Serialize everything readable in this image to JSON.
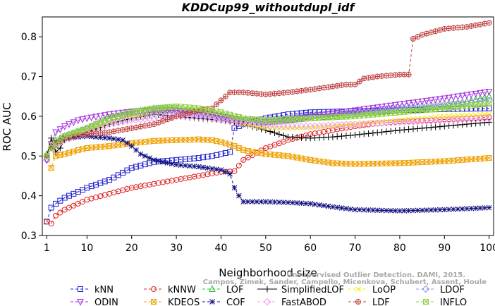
{
  "chart_data": {
    "type": "line",
    "title": "KDDCup99_withoutdupl_idf",
    "xlabel": "Neighborhood size",
    "ylabel": "ROC AUC",
    "xlim": [
      0,
      101
    ],
    "ylim": [
      0.3,
      0.85
    ],
    "x_ticks": [
      1,
      10,
      20,
      30,
      40,
      50,
      60,
      70,
      80,
      90,
      100
    ],
    "y_ticks": [
      0.3,
      0.4,
      0.5,
      0.6,
      0.7,
      0.8
    ],
    "x_tick_labels": [
      "1",
      "10",
      "20",
      "30",
      "40",
      "50",
      "60",
      "70",
      "80",
      "90",
      "100"
    ],
    "y_tick_labels": [
      "0.3",
      "0.4",
      "0.5",
      "0.6",
      "0.7",
      "0.8"
    ],
    "grid": false,
    "legend_position": "bottom",
    "watermark": "Campos, Zimek, Sander, Campello, Micenkova, Schubert, Assent, Houle",
    "watermark_line1": "Unsupervised Outlier Detection. DAMI, 2015.",
    "series": [
      {
        "name": "kNN",
        "color": "#2020d0",
        "marker": "square",
        "dash": "4,3",
        "points": [
          [
            1,
            0.335
          ],
          [
            2,
            0.37
          ],
          [
            3,
            0.38
          ],
          [
            5,
            0.395
          ],
          [
            8,
            0.41
          ],
          [
            10,
            0.42
          ],
          [
            15,
            0.44
          ],
          [
            20,
            0.47
          ],
          [
            25,
            0.485
          ],
          [
            30,
            0.49
          ],
          [
            35,
            0.495
          ],
          [
            38,
            0.5
          ],
          [
            42,
            0.51
          ],
          [
            43,
            0.57
          ],
          [
            45,
            0.58
          ],
          [
            50,
            0.595
          ],
          [
            55,
            0.605
          ],
          [
            60,
            0.61
          ],
          [
            70,
            0.613
          ],
          [
            80,
            0.615
          ],
          [
            90,
            0.618
          ],
          [
            100,
            0.62
          ]
        ]
      },
      {
        "name": "kNNW",
        "color": "#e02020",
        "marker": "circle",
        "dash": "4,3",
        "points": [
          [
            1,
            0.335
          ],
          [
            2,
            0.33
          ],
          [
            3,
            0.35
          ],
          [
            5,
            0.365
          ],
          [
            8,
            0.38
          ],
          [
            10,
            0.39
          ],
          [
            15,
            0.405
          ],
          [
            20,
            0.42
          ],
          [
            25,
            0.43
          ],
          [
            30,
            0.44
          ],
          [
            35,
            0.45
          ],
          [
            40,
            0.46
          ],
          [
            43,
            0.462
          ],
          [
            45,
            0.49
          ],
          [
            50,
            0.52
          ],
          [
            55,
            0.54
          ],
          [
            60,
            0.555
          ],
          [
            65,
            0.565
          ],
          [
            70,
            0.575
          ],
          [
            75,
            0.582
          ],
          [
            80,
            0.587
          ],
          [
            90,
            0.592
          ],
          [
            100,
            0.598
          ]
        ]
      },
      {
        "name": "LOF",
        "color": "#30c030",
        "marker": "triangle-up",
        "dash": "4,3",
        "points": [
          [
            1,
            0.505
          ],
          [
            2,
            0.525
          ],
          [
            3,
            0.54
          ],
          [
            5,
            0.55
          ],
          [
            8,
            0.56
          ],
          [
            10,
            0.57
          ],
          [
            15,
            0.595
          ],
          [
            20,
            0.61
          ],
          [
            25,
            0.62
          ],
          [
            30,
            0.62
          ],
          [
            35,
            0.61
          ],
          [
            40,
            0.6
          ],
          [
            45,
            0.585
          ],
          [
            50,
            0.585
          ],
          [
            55,
            0.59
          ],
          [
            60,
            0.595
          ],
          [
            70,
            0.605
          ],
          [
            80,
            0.615
          ],
          [
            90,
            0.625
          ],
          [
            100,
            0.65
          ]
        ]
      },
      {
        "name": "SimplifiedLOF",
        "color": "#000000",
        "marker": "plus",
        "dash": "",
        "points": [
          [
            1,
            0.5
          ],
          [
            2,
            0.545
          ],
          [
            3,
            0.51
          ],
          [
            4,
            0.52
          ],
          [
            5,
            0.54
          ],
          [
            8,
            0.55
          ],
          [
            10,
            0.56
          ],
          [
            15,
            0.58
          ],
          [
            20,
            0.595
          ],
          [
            25,
            0.605
          ],
          [
            30,
            0.6
          ],
          [
            35,
            0.595
          ],
          [
            40,
            0.59
          ],
          [
            45,
            0.58
          ],
          [
            50,
            0.565
          ],
          [
            55,
            0.548
          ],
          [
            60,
            0.545
          ],
          [
            65,
            0.548
          ],
          [
            70,
            0.553
          ],
          [
            80,
            0.565
          ],
          [
            90,
            0.575
          ],
          [
            100,
            0.585
          ]
        ]
      },
      {
        "name": "LoOP",
        "color": "#f0f000",
        "marker": "x",
        "dash": "4,3",
        "points": [
          [
            1,
            0.5
          ],
          [
            2,
            0.53
          ],
          [
            5,
            0.55
          ],
          [
            10,
            0.565
          ],
          [
            15,
            0.585
          ],
          [
            20,
            0.6
          ],
          [
            25,
            0.61
          ],
          [
            30,
            0.615
          ],
          [
            35,
            0.61
          ],
          [
            40,
            0.6
          ],
          [
            45,
            0.58
          ],
          [
            50,
            0.57
          ],
          [
            55,
            0.57
          ],
          [
            60,
            0.572
          ],
          [
            70,
            0.58
          ],
          [
            80,
            0.59
          ],
          [
            90,
            0.6
          ],
          [
            100,
            0.605
          ]
        ]
      },
      {
        "name": "LDOF",
        "color": "#9090e0",
        "marker": "diamond",
        "dash": "4,3",
        "points": [
          [
            1,
            0.49
          ],
          [
            2,
            0.52
          ],
          [
            5,
            0.55
          ],
          [
            10,
            0.57
          ],
          [
            15,
            0.59
          ],
          [
            20,
            0.605
          ],
          [
            25,
            0.61
          ],
          [
            30,
            0.612
          ],
          [
            35,
            0.605
          ],
          [
            40,
            0.598
          ],
          [
            45,
            0.59
          ],
          [
            50,
            0.59
          ],
          [
            60,
            0.6
          ],
          [
            70,
            0.61
          ],
          [
            80,
            0.62
          ],
          [
            90,
            0.63
          ],
          [
            100,
            0.64
          ]
        ]
      },
      {
        "name": "ODIN",
        "color": "#a030e0",
        "marker": "triangle-down",
        "dash": "4,3",
        "points": [
          [
            1,
            0.49
          ],
          [
            2,
            0.53
          ],
          [
            3,
            0.56
          ],
          [
            5,
            0.575
          ],
          [
            8,
            0.59
          ],
          [
            10,
            0.595
          ],
          [
            15,
            0.605
          ],
          [
            20,
            0.612
          ],
          [
            25,
            0.615
          ],
          [
            30,
            0.615
          ],
          [
            35,
            0.61
          ],
          [
            40,
            0.6
          ],
          [
            45,
            0.59
          ],
          [
            50,
            0.585
          ],
          [
            55,
            0.59
          ],
          [
            60,
            0.6
          ],
          [
            70,
            0.615
          ],
          [
            80,
            0.63
          ],
          [
            90,
            0.645
          ],
          [
            100,
            0.662
          ]
        ]
      },
      {
        "name": "KDEOS",
        "color": "#f0a000",
        "marker": "square-x",
        "dash": "4,3",
        "points": [
          [
            1,
            0.5
          ],
          [
            2,
            0.47
          ],
          [
            3,
            0.5
          ],
          [
            5,
            0.505
          ],
          [
            8,
            0.515
          ],
          [
            10,
            0.52
          ],
          [
            15,
            0.525
          ],
          [
            20,
            0.532
          ],
          [
            25,
            0.538
          ],
          [
            30,
            0.54
          ],
          [
            35,
            0.542
          ],
          [
            38,
            0.54
          ],
          [
            40,
            0.535
          ],
          [
            43,
            0.525
          ],
          [
            45,
            0.515
          ],
          [
            50,
            0.505
          ],
          [
            55,
            0.5
          ],
          [
            60,
            0.49
          ],
          [
            65,
            0.482
          ],
          [
            70,
            0.48
          ],
          [
            80,
            0.482
          ],
          [
            90,
            0.487
          ],
          [
            100,
            0.495
          ]
        ]
      },
      {
        "name": "COF",
        "color": "#101080",
        "marker": "asterisk",
        "dash": "4,3",
        "points": [
          [
            1,
            0.5
          ],
          [
            2,
            0.525
          ],
          [
            3,
            0.535
          ],
          [
            5,
            0.545
          ],
          [
            10,
            0.55
          ],
          [
            15,
            0.545
          ],
          [
            18,
            0.54
          ],
          [
            20,
            0.525
          ],
          [
            22,
            0.505
          ],
          [
            25,
            0.49
          ],
          [
            30,
            0.478
          ],
          [
            35,
            0.473
          ],
          [
            40,
            0.465
          ],
          [
            42,
            0.455
          ],
          [
            43,
            0.42
          ],
          [
            44,
            0.4
          ],
          [
            45,
            0.385
          ],
          [
            50,
            0.385
          ],
          [
            55,
            0.383
          ],
          [
            60,
            0.38
          ],
          [
            65,
            0.372
          ],
          [
            70,
            0.365
          ],
          [
            80,
            0.362
          ],
          [
            90,
            0.365
          ],
          [
            100,
            0.37
          ]
        ]
      },
      {
        "name": "FastABOD",
        "color": "#f0a0f0",
        "marker": "diamond",
        "dash": "4,3",
        "points": [
          [
            1,
            0.5
          ],
          [
            2,
            0.52
          ],
          [
            5,
            0.54
          ],
          [
            10,
            0.56
          ],
          [
            15,
            0.58
          ],
          [
            20,
            0.59
          ],
          [
            25,
            0.595
          ],
          [
            30,
            0.6
          ],
          [
            35,
            0.598
          ],
          [
            40,
            0.59
          ],
          [
            45,
            0.582
          ],
          [
            50,
            0.575
          ],
          [
            60,
            0.575
          ],
          [
            70,
            0.58
          ],
          [
            80,
            0.585
          ],
          [
            90,
            0.59
          ],
          [
            100,
            0.595
          ]
        ]
      },
      {
        "name": "LDF",
        "color": "#c04040",
        "marker": "circle-plus",
        "dash": "4,3",
        "points": [
          [
            1,
            0.5
          ],
          [
            2,
            0.52
          ],
          [
            5,
            0.545
          ],
          [
            10,
            0.555
          ],
          [
            15,
            0.56
          ],
          [
            20,
            0.57
          ],
          [
            25,
            0.58
          ],
          [
            30,
            0.6
          ],
          [
            35,
            0.615
          ],
          [
            38,
            0.62
          ],
          [
            40,
            0.64
          ],
          [
            42,
            0.66
          ],
          [
            45,
            0.66
          ],
          [
            50,
            0.655
          ],
          [
            55,
            0.66
          ],
          [
            60,
            0.667
          ],
          [
            65,
            0.675
          ],
          [
            68,
            0.68
          ],
          [
            70,
            0.68
          ],
          [
            72,
            0.695
          ],
          [
            75,
            0.7
          ],
          [
            80,
            0.705
          ],
          [
            82,
            0.705
          ],
          [
            83,
            0.795
          ],
          [
            85,
            0.805
          ],
          [
            90,
            0.82
          ],
          [
            95,
            0.825
          ],
          [
            100,
            0.835
          ]
        ]
      },
      {
        "name": "INFLO",
        "color": "#90d040",
        "marker": "square-x",
        "dash": "4,3",
        "points": [
          [
            1,
            0.5
          ],
          [
            2,
            0.52
          ],
          [
            5,
            0.55
          ],
          [
            10,
            0.57
          ],
          [
            15,
            0.595
          ],
          [
            20,
            0.61
          ],
          [
            25,
            0.62
          ],
          [
            30,
            0.625
          ],
          [
            35,
            0.62
          ],
          [
            40,
            0.61
          ],
          [
            45,
            0.595
          ],
          [
            50,
            0.59
          ],
          [
            60,
            0.595
          ],
          [
            70,
            0.6
          ],
          [
            80,
            0.61
          ],
          [
            90,
            0.62
          ],
          [
            100,
            0.632
          ]
        ]
      }
    ]
  }
}
